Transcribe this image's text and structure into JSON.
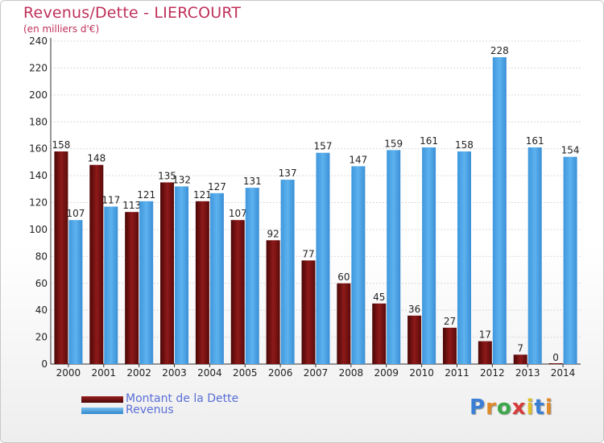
{
  "header": {
    "title": "Revenus/Dette - LIERCOURT",
    "subtitle": "(en milliers d'€)"
  },
  "chart_data": {
    "type": "bar",
    "categories": [
      "2000",
      "2001",
      "2002",
      "2003",
      "2004",
      "2005",
      "2006",
      "2007",
      "2008",
      "2009",
      "2010",
      "2011",
      "2012",
      "2013",
      "2014"
    ],
    "series": [
      {
        "name": "Montant de la Dette",
        "values": [
          158,
          148,
          113,
          135,
          121,
          107,
          92,
          77,
          60,
          45,
          36,
          27,
          17,
          7,
          0
        ],
        "value_labels": [
          "158",
          "148",
          "113",
          "135",
          "121",
          "107",
          "92",
          "77",
          "60",
          "45",
          "36",
          "27",
          "17",
          "7",
          "0"
        ],
        "color": "#7a1010"
      },
      {
        "name": "Revenus",
        "values": [
          107,
          117,
          121,
          132,
          127,
          131,
          137,
          157,
          147,
          159,
          161,
          158,
          228,
          161,
          154
        ],
        "value_labels": [
          "107",
          "117",
          "121",
          "132",
          "127",
          "131",
          "137",
          "157",
          "147",
          "159",
          "161",
          "158",
          "228",
          "161",
          "154"
        ],
        "color": "#4aa3e6"
      }
    ],
    "ylim": [
      0,
      240
    ],
    "yticks": [
      0,
      20,
      40,
      60,
      80,
      100,
      120,
      140,
      160,
      180,
      200,
      220,
      240
    ],
    "grid": true
  },
  "legend": {
    "items": [
      {
        "label": "Montant de la Dette",
        "color": "#7a1010"
      },
      {
        "label": "Revenus",
        "color": "#4aa3e6"
      }
    ]
  },
  "logo": {
    "text": "Proxiti",
    "letters": [
      {
        "ch": "P",
        "color": "#3a7fd5"
      },
      {
        "ch": "r",
        "color": "#e0892a"
      },
      {
        "ch": "o",
        "color": "#3aa84a"
      },
      {
        "ch": "x",
        "color": "#d63a3a"
      },
      {
        "ch": "i",
        "color": "#e0c02a"
      },
      {
        "ch": "t",
        "color": "#3a7fd5"
      },
      {
        "ch": "i",
        "color": "#e0892a"
      }
    ]
  }
}
